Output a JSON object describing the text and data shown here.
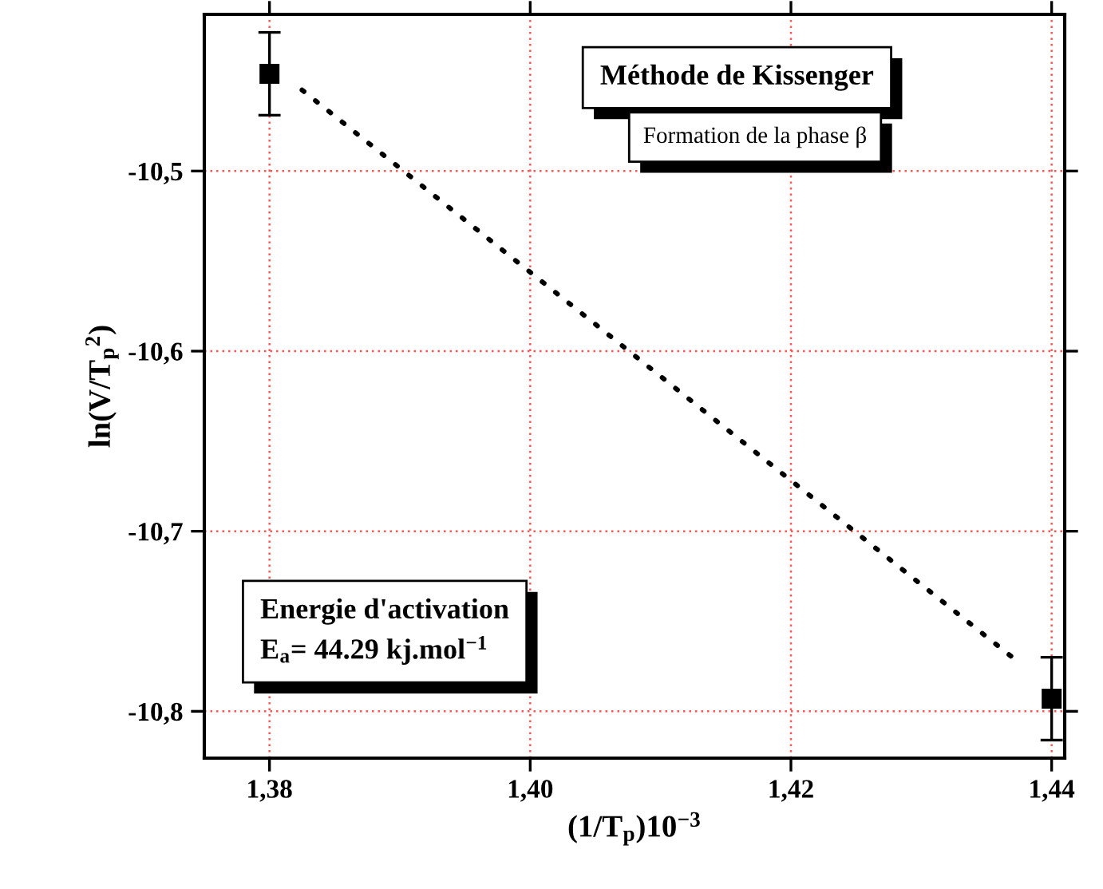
{
  "chart_data": {
    "type": "scatter",
    "xlabel": "(1/T$_{p}$)10$^{−3}$",
    "ylabel": "ln(V/T$_{p}$$^{2}$)",
    "x": [
      1.38,
      1.44
    ],
    "series": [
      {
        "type": "scatter",
        "color": "#000000",
        "marker": "square",
        "values": [
          -10.446,
          -10.793
        ],
        "errors": [
          0.023,
          0.023
        ]
      },
      {
        "type": "line",
        "color": "#000000",
        "line_style": "dotted",
        "marker": "none",
        "x": [
          1.3825,
          1.4375
        ],
        "values": [
          -10.455,
          -10.773
        ]
      }
    ],
    "xlim": [
      1.375,
      1.441
    ],
    "ylim": [
      -10.826,
      -10.413
    ],
    "xticks": [
      {
        "value": 1.38,
        "label": "1,38"
      },
      {
        "value": 1.4,
        "label": "1,40"
      },
      {
        "value": 1.42,
        "label": "1,42"
      },
      {
        "value": 1.44,
        "label": "1,44"
      }
    ],
    "yticks": [
      {
        "value": -10.8,
        "label": "-10,8"
      },
      {
        "value": -10.7,
        "label": "-10,7"
      },
      {
        "value": -10.6,
        "label": "-10,6"
      },
      {
        "value": -10.5,
        "label": "-10,5"
      }
    ],
    "grid": true,
    "annotations": [
      "Méthode de Kissenger",
      "Formation de la phase β",
      "Energie d'activation\nE$_{a}$= 44.29 kj.mol$^{−1}$"
    ]
  }
}
